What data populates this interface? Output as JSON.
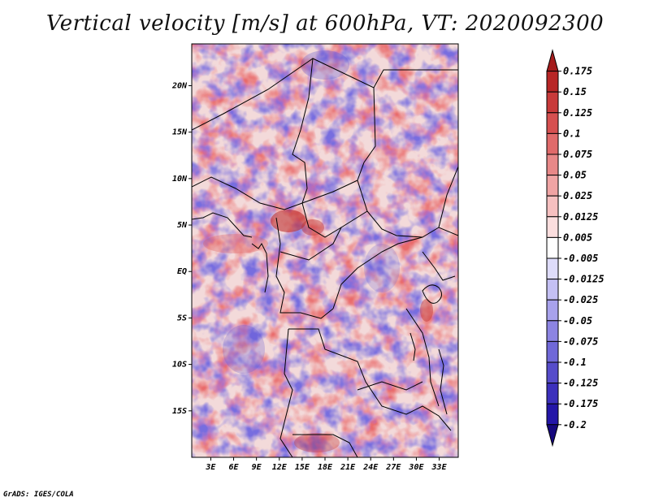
{
  "title": "Vertical velocity [m/s] at 600hPa, VT: 2020092300",
  "footer": "GrADS: IGES/COLA",
  "map": {
    "lat_labels": [
      {
        "label": "20N",
        "lat": 20
      },
      {
        "label": "15N",
        "lat": 15
      },
      {
        "label": "10N",
        "lat": 10
      },
      {
        "label": "5N",
        "lat": 5
      },
      {
        "label": "EQ",
        "lat": 0
      },
      {
        "label": "5S",
        "lat": -5
      },
      {
        "label": "10S",
        "lat": -10
      },
      {
        "label": "15S",
        "lat": -15
      }
    ],
    "lon_labels": [
      {
        "label": "3E",
        "lon": 3
      },
      {
        "label": "6E",
        "lon": 6
      },
      {
        "label": "9E",
        "lon": 9
      },
      {
        "label": "12E",
        "lon": 12
      },
      {
        "label": "15E",
        "lon": 15
      },
      {
        "label": "18E",
        "lon": 18
      },
      {
        "label": "21E",
        "lon": 21
      },
      {
        "label": "24E",
        "lon": 24
      },
      {
        "label": "27E",
        "lon": 27
      },
      {
        "label": "30E",
        "lon": 30
      },
      {
        "label": "33E",
        "lon": 33
      }
    ],
    "extent": {
      "lon_min": 0.5,
      "lon_max": 35.5,
      "lat_min": -20,
      "lat_max": 24.5
    }
  },
  "colorbar": {
    "levels": [
      "0.175",
      "0.15",
      "0.125",
      "0.1",
      "0.075",
      "0.05",
      "0.025",
      "0.0125",
      "0.005",
      "-0.005",
      "-0.0125",
      "-0.025",
      "-0.05",
      "-0.075",
      "-0.1",
      "-0.125",
      "-0.175",
      "-0.2"
    ],
    "colors": [
      "#a41c1c",
      "#b82626",
      "#c83a3a",
      "#d65050",
      "#e06a6a",
      "#e88888",
      "#f0a4a4",
      "#f6c0c0",
      "#fbdede",
      "#ffffff",
      "#dedcfa",
      "#c4c0f4",
      "#a8a2ec",
      "#8c84e2",
      "#7068d8",
      "#564cca",
      "#3c30bc",
      "#2416a8",
      "#16087e"
    ]
  }
}
